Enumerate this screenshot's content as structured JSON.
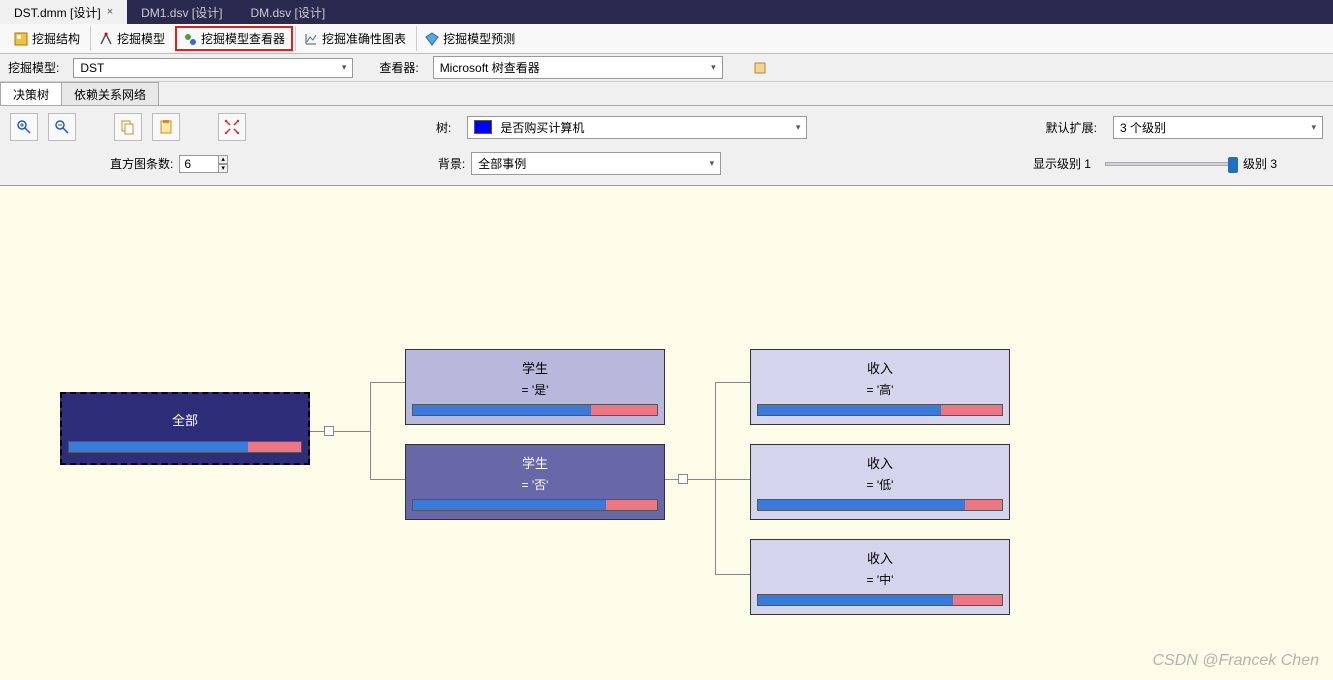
{
  "docTabs": [
    {
      "label": "DST.dmm [设计]",
      "active": true,
      "closable": true
    },
    {
      "label": "DM1.dsv [设计]",
      "active": false,
      "closable": false
    },
    {
      "label": "DM.dsv [设计]",
      "active": false,
      "closable": false
    }
  ],
  "toolTabs": {
    "t0": "挖掘结构",
    "t1": "挖掘模型",
    "t2": "挖掘模型查看器",
    "t3": "挖掘准确性图表",
    "t4": "挖掘模型预测"
  },
  "row1": {
    "modelLabel": "挖掘模型:",
    "modelValue": "DST",
    "viewerLabel": "查看器:",
    "viewerValue": "Microsoft 树查看器"
  },
  "subTabs": {
    "a": "决策树",
    "b": "依赖关系网络"
  },
  "iconRow": {
    "treeLabel": "树:",
    "treeValue": "是否购买计算机",
    "defaultExpandLabel": "默认扩展:",
    "defaultExpandValue": "3 个级别"
  },
  "paramRow": {
    "histLabel": "直方图条数:",
    "histValue": "6",
    "bgLabel": "背景:",
    "bgValue": "全部事例",
    "sliderLeft": "显示级别 1",
    "sliderRight": "级别 3"
  },
  "colors": {
    "canvasBg": "#fdfce9",
    "barA": "#3a7ad8",
    "barB": "#ec7784",
    "rootBg": "#2d2d7a",
    "midBg": "#b8b8dc",
    "mid2Bg": "#6868a8",
    "leafBg": "#d4d4ec"
  },
  "tree": {
    "root": {
      "title": "全部",
      "barA_pct": 77,
      "barB_pct": 23
    },
    "n1": {
      "title": "学生",
      "sub": "= '是'",
      "barA_pct": 73,
      "barB_pct": 27
    },
    "n2": {
      "title": "学生",
      "sub": "= '否'",
      "barA_pct": 79,
      "barB_pct": 21
    },
    "l1": {
      "title": "收入",
      "sub": "= '高'",
      "barA_pct": 75,
      "barB_pct": 25
    },
    "l2": {
      "title": "收入",
      "sub": "= '低'",
      "barA_pct": 85,
      "barB_pct": 15
    },
    "l3": {
      "title": "收入",
      "sub": "= '中'",
      "barA_pct": 80,
      "barB_pct": 20
    }
  },
  "watermark": "CSDN @Francek Chen"
}
